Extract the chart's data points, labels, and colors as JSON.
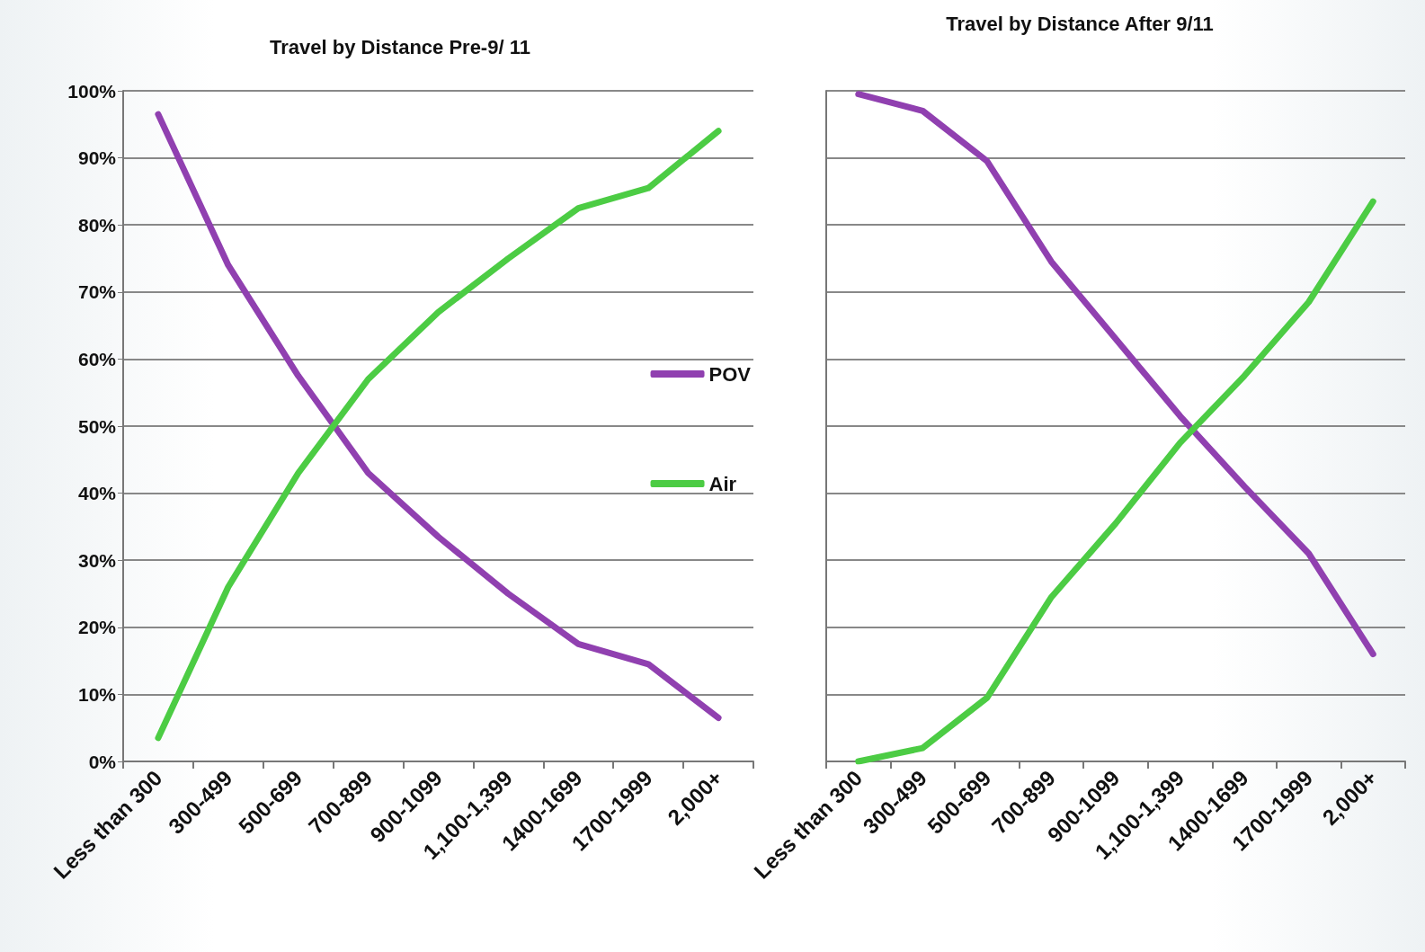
{
  "chart_data": [
    {
      "type": "line",
      "title": "Travel by Distance Pre-9/ 11",
      "categories": [
        "Less than 300",
        "300-499",
        "500-699",
        "700-899",
        "900-1099",
        "1,100-1,399",
        "1400-1699",
        "1700-1999",
        "2,000+"
      ],
      "series": [
        {
          "name": "POV",
          "color": "#9040b0",
          "values": [
            96.5,
            74,
            57.5,
            43,
            33.5,
            25,
            17.5,
            14.5,
            6.5
          ]
        },
        {
          "name": "Air",
          "color": "#4ccc44",
          "values": [
            3.5,
            26,
            43,
            57,
            67,
            75,
            82.5,
            85.5,
            94
          ]
        }
      ],
      "ylim": [
        0,
        100
      ],
      "yticks": [
        {
          "value": 0,
          "label": "0%"
        },
        {
          "value": 10,
          "label": "10%"
        },
        {
          "value": 20,
          "label": "20%"
        },
        {
          "value": 30,
          "label": "30%"
        },
        {
          "value": 40,
          "label": "40%"
        },
        {
          "value": 50,
          "label": "50%"
        },
        {
          "value": 60,
          "label": "60%"
        },
        {
          "value": 70,
          "label": "70%"
        },
        {
          "value": 80,
          "label": "80%"
        },
        {
          "value": 90,
          "label": "90%"
        },
        {
          "value": 100,
          "label": "100%"
        }
      ],
      "grid": "y",
      "legend": "right",
      "marker": "none",
      "line_style": "solid"
    },
    {
      "type": "line",
      "title": "Travel by Distance After 9/11",
      "categories": [
        "Less than 300",
        "300-499",
        "500-699",
        "700-899",
        "900-1099",
        "1,100-1,399",
        "1400-1699",
        "1700-1999",
        "2,000+"
      ],
      "series": [
        {
          "color": "#9040b0",
          "values": [
            99.5,
            97,
            89.5,
            74.5,
            63,
            51.5,
            41,
            31,
            16
          ]
        },
        {
          "color": "#4ccc44",
          "values": [
            0,
            2,
            9.5,
            24.5,
            35.5,
            47.5,
            57.5,
            68.5,
            83.5
          ]
        }
      ],
      "ylim": [
        0,
        100
      ],
      "yticks": [
        {
          "value": 0,
          "label": null
        },
        {
          "value": 10,
          "label": null
        },
        {
          "value": 20,
          "label": null
        },
        {
          "value": 30,
          "label": null
        },
        {
          "value": 40,
          "label": null
        },
        {
          "value": 50,
          "label": null
        },
        {
          "value": 60,
          "label": null
        },
        {
          "value": 70,
          "label": null
        },
        {
          "value": 80,
          "label": null
        },
        {
          "value": 90,
          "label": null
        },
        {
          "value": 100,
          "label": null
        }
      ],
      "grid": "y",
      "legend": false,
      "tick_labels": "x",
      "marker": "none",
      "line_style": "solid"
    }
  ]
}
